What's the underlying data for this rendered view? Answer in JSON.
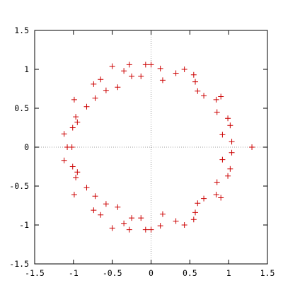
{
  "chart_data": {
    "type": "scatter",
    "title": "",
    "xlabel": "",
    "ylabel": "",
    "xlim": [
      -1.5,
      1.5
    ],
    "ylim": [
      -1.5,
      1.5
    ],
    "x_ticks": [
      -1.5,
      -1,
      -0.5,
      0,
      0.5,
      1,
      1.5
    ],
    "x_tick_labels": [
      "-1.5",
      "-1",
      "-0.5",
      "0",
      "0.5",
      "1",
      "1.5"
    ],
    "y_ticks": [
      -1.5,
      -1,
      -0.5,
      0,
      0.5,
      1,
      1.5
    ],
    "y_tick_labels": [
      "-1.5",
      "-1",
      "-0.5",
      "0",
      "0.5",
      "1",
      "1.5"
    ],
    "grid": false,
    "zero_axes": "dotted",
    "legend": "none",
    "colors": {
      "marker": "#cc0000",
      "axis": "#000000",
      "zero_line": "#a0a0a0"
    },
    "marker": "plus",
    "series": [
      {
        "name": "",
        "points": [
          [
            1.3,
            0.0
          ],
          [
            1.04,
            0.07
          ],
          [
            1.04,
            -0.07
          ],
          [
            1.02,
            0.28
          ],
          [
            1.02,
            -0.28
          ],
          [
            0.99,
            0.37
          ],
          [
            0.99,
            -0.37
          ],
          [
            0.92,
            0.16
          ],
          [
            0.92,
            -0.16
          ],
          [
            0.9,
            0.65
          ],
          [
            0.9,
            -0.65
          ],
          [
            0.85,
            0.45
          ],
          [
            0.85,
            -0.45
          ],
          [
            0.84,
            0.61
          ],
          [
            0.84,
            -0.61
          ],
          [
            0.68,
            0.66
          ],
          [
            0.68,
            -0.66
          ],
          [
            0.6,
            0.72
          ],
          [
            0.6,
            -0.72
          ],
          [
            0.57,
            0.84
          ],
          [
            0.57,
            -0.84
          ],
          [
            0.55,
            0.93
          ],
          [
            0.55,
            -0.93
          ],
          [
            0.43,
            1.0
          ],
          [
            0.43,
            -1.0
          ],
          [
            0.32,
            0.95
          ],
          [
            0.32,
            -0.95
          ],
          [
            0.15,
            0.86
          ],
          [
            0.15,
            -0.86
          ],
          [
            0.12,
            1.01
          ],
          [
            0.12,
            -1.01
          ],
          [
            0.0,
            1.06
          ],
          [
            0.0,
            -1.06
          ],
          [
            -0.07,
            1.06
          ],
          [
            -0.07,
            -1.06
          ],
          [
            -0.13,
            0.91
          ],
          [
            -0.13,
            -0.91
          ],
          [
            -0.25,
            0.91
          ],
          [
            -0.25,
            -0.91
          ],
          [
            -0.28,
            1.06
          ],
          [
            -0.28,
            -1.06
          ],
          [
            -0.35,
            0.98
          ],
          [
            -0.35,
            -0.98
          ],
          [
            -0.43,
            0.77
          ],
          [
            -0.43,
            -0.77
          ],
          [
            -0.5,
            1.04
          ],
          [
            -0.5,
            -1.04
          ],
          [
            -0.58,
            0.73
          ],
          [
            -0.58,
            -0.73
          ],
          [
            -0.65,
            0.87
          ],
          [
            -0.65,
            -0.87
          ],
          [
            -0.72,
            0.63
          ],
          [
            -0.72,
            -0.63
          ],
          [
            -0.74,
            0.81
          ],
          [
            -0.74,
            -0.81
          ],
          [
            -0.83,
            0.52
          ],
          [
            -0.83,
            -0.52
          ],
          [
            -0.95,
            0.32
          ],
          [
            -0.95,
            -0.32
          ],
          [
            -0.97,
            0.39
          ],
          [
            -0.97,
            -0.39
          ],
          [
            -0.99,
            0.61
          ],
          [
            -0.99,
            -0.61
          ],
          [
            -1.01,
            0.25
          ],
          [
            -1.01,
            -0.25
          ],
          [
            -1.02,
            0.0
          ],
          [
            -1.12,
            0.17
          ],
          [
            -1.12,
            -0.17
          ],
          [
            -1.08,
            0.0
          ]
        ]
      }
    ]
  }
}
